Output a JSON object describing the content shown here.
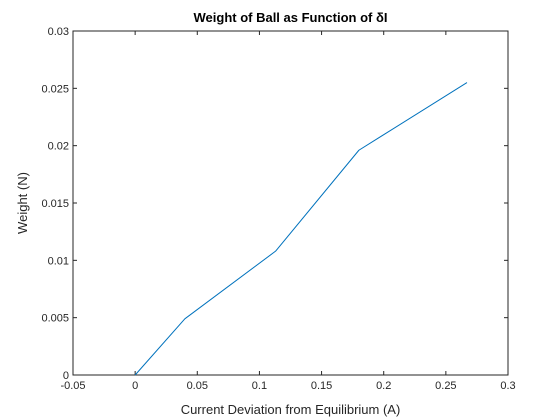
{
  "chart_data": {
    "type": "line",
    "title": "Weight of Ball as Function of δI",
    "xlabel": "Current Deviation from Equilibrium (A)",
    "ylabel": "Weight (N)",
    "xlim": [
      -0.05,
      0.3
    ],
    "ylim": [
      0,
      0.03
    ],
    "xticks": [
      -0.05,
      0,
      0.05,
      0.1,
      0.15,
      0.2,
      0.25,
      0.3
    ],
    "xtick_labels": [
      "-0.05",
      "0",
      "0.05",
      "0.1",
      "0.15",
      "0.2",
      "0.25",
      "0.3"
    ],
    "yticks": [
      0,
      0.005,
      0.01,
      0.015,
      0.02,
      0.025,
      0.03
    ],
    "ytick_labels": [
      "0",
      "0.005",
      "0.01",
      "0.015",
      "0.02",
      "0.025",
      "0.03"
    ],
    "grid": false,
    "box": true,
    "series": [
      {
        "color": "#0072BD",
        "x": [
          0,
          0.04,
          0.113,
          0.18,
          0.267
        ],
        "y": [
          0,
          0.0049,
          0.0108,
          0.0196,
          0.0255
        ]
      }
    ]
  },
  "colors": {
    "axis": "#262626",
    "background": "#ffffff",
    "line": "#0072BD"
  }
}
